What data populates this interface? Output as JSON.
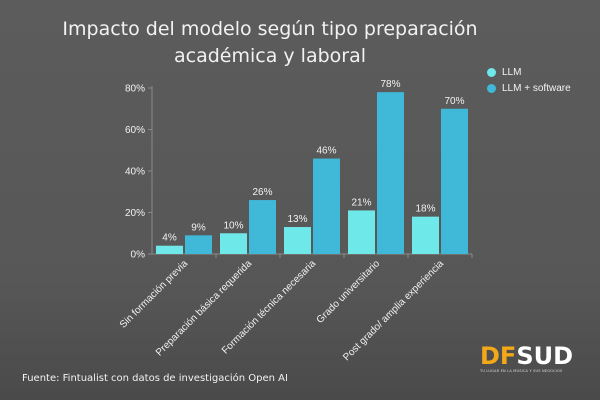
{
  "title_lines": [
    "Impacto del modelo según tipo preparación",
    "académica y laboral"
  ],
  "source": "Fuente: Fintualist con datos de investigación Open AI",
  "logo": {
    "text_a": "DF",
    "text_b": "SUD",
    "tagline": "TU LUGAR EN LA MÚSICA Y SUS NEGOCIOS"
  },
  "colors": {
    "series_1": "#6ee8e8",
    "series_2": "#40b8d8",
    "text": "#f2f2f2",
    "axis": "#8a8a8a"
  },
  "chart_data": {
    "type": "bar",
    "categories": [
      "Sin formación previa",
      "Preparación básica requerida",
      "Formación técnica necesaria",
      "Grado universitario",
      "Post grado/ amplia experiencia"
    ],
    "series": [
      {
        "name": "LLM",
        "values": [
          4,
          10,
          13,
          21,
          18
        ],
        "labels": [
          "4%",
          "10%",
          "13%",
          "21%",
          "18%"
        ]
      },
      {
        "name": "LLM + software",
        "values": [
          9,
          26,
          46,
          78,
          70
        ],
        "labels": [
          "9%",
          "26%",
          "46%",
          "78%",
          "70%"
        ]
      }
    ],
    "ylim": [
      0,
      80
    ],
    "yticks": [
      0,
      20,
      40,
      60,
      80
    ],
    "ytick_labels": [
      "0%",
      "20%",
      "40%",
      "60%",
      "80%"
    ],
    "xlabel": "",
    "ylabel": "",
    "grid": false,
    "legend": "top-right"
  }
}
